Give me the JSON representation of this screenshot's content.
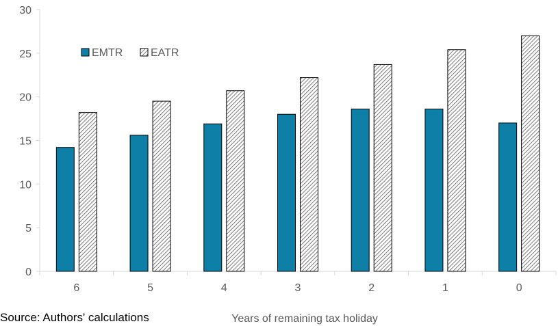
{
  "chart_data": {
    "type": "bar",
    "categories": [
      "6",
      "5",
      "4",
      "3",
      "2",
      "1",
      "0"
    ],
    "series": [
      {
        "name": "EMTR",
        "values": [
          14.2,
          15.6,
          16.9,
          18.0,
          18.6,
          18.6,
          17.0
        ],
        "color": "#0e7fa6",
        "fill": "solid"
      },
      {
        "name": "EATR",
        "values": [
          18.2,
          19.5,
          20.7,
          22.2,
          23.7,
          25.4,
          27.0
        ],
        "color": "#ffffff",
        "fill": "diagonal-hatch"
      }
    ],
    "title": "",
    "xlabel": "Years of remaining tax holiday",
    "ylabel": "",
    "ylim": [
      0,
      30
    ],
    "yticks": [
      "0",
      "5",
      "10",
      "15",
      "20",
      "25",
      "30"
    ],
    "grid": false,
    "legend_position": "top-left"
  },
  "source_note": "Source: Authors' calculations"
}
